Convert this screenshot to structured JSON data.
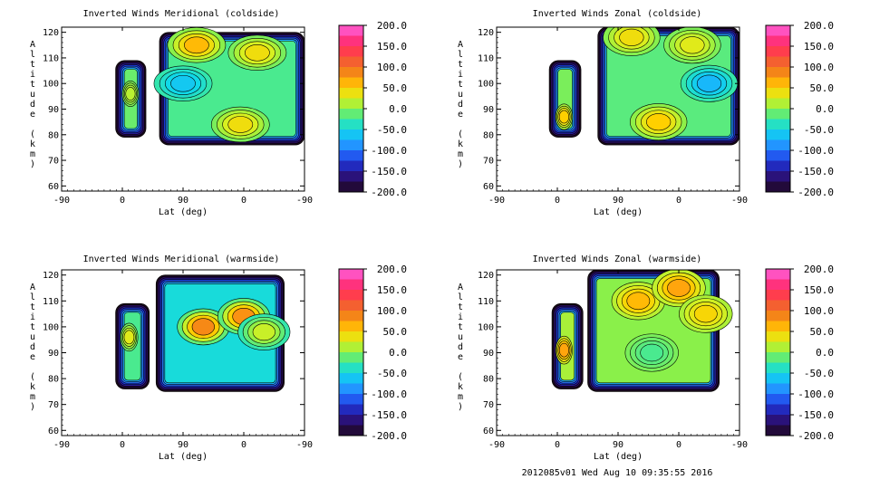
{
  "footer": "2012085v01 Wed Aug 10 09:35:55 2016",
  "chart_data": [
    {
      "type": "heatmap",
      "title": "Inverted Winds Meridional (coldside)",
      "xlabel": "Lat (deg)",
      "ylabel": "Altitude (km)",
      "x_tick_labels": [
        "-90",
        "0",
        "90",
        "0",
        "-90"
      ],
      "y_ticks": [
        60,
        70,
        80,
        90,
        100,
        110,
        120
      ],
      "ylim": [
        58,
        122
      ],
      "colorbar_ticks": [
        "200.0",
        "150.0",
        "100.0",
        "50.0",
        "0.0",
        "-50.0",
        "-100.0",
        "-150.0",
        "-200.0"
      ],
      "colorbar_range": [
        -200,
        200
      ],
      "blobs": [
        {
          "region": "left-band",
          "lat": [
            -10,
            35
          ],
          "alt": [
            79,
            109
          ],
          "value": -10,
          "core": [
            {
              "lat": 12,
              "alt": 96,
              "value": 15
            }
          ]
        },
        {
          "region": "right-band",
          "lat": [
            125,
            -90
          ],
          "alt": [
            76,
            120
          ],
          "value": -20,
          "core": [
            {
              "lat": 70,
              "alt": 115,
              "value": 60
            },
            {
              "lat": -20,
              "alt": 112,
              "value": 40
            },
            {
              "lat": 5,
              "alt": 84,
              "value": 40
            },
            {
              "lat": 90,
              "alt": 100,
              "value": -60
            }
          ]
        }
      ]
    },
    {
      "type": "heatmap",
      "title": "Inverted Winds Zonal (coldside)",
      "xlabel": "Lat (deg)",
      "ylabel": "Altitude (km)",
      "x_tick_labels": [
        "-90",
        "0",
        "90",
        "0",
        "-90"
      ],
      "y_ticks": [
        60,
        70,
        80,
        90,
        100,
        110,
        120
      ],
      "ylim": [
        58,
        122
      ],
      "colorbar_ticks": [
        "200.0",
        "150.0",
        "100.0",
        "50.0",
        "0.0",
        "-50.0",
        "-100.0",
        "-150.0",
        "-200.0"
      ],
      "colorbar_range": [
        -200,
        200
      ],
      "blobs": [
        {
          "region": "left-band",
          "lat": [
            -12,
            35
          ],
          "alt": [
            79,
            109
          ],
          "value": -5,
          "core": [
            {
              "lat": 10,
              "alt": 87,
              "value": 50
            }
          ]
        },
        {
          "region": "right-band",
          "lat": [
            120,
            -90
          ],
          "alt": [
            76,
            122
          ],
          "value": -15,
          "core": [
            {
              "lat": 70,
              "alt": 118,
              "value": 40
            },
            {
              "lat": 30,
              "alt": 85,
              "value": 50
            },
            {
              "lat": -20,
              "alt": 115,
              "value": 30
            },
            {
              "lat": -45,
              "alt": 100,
              "value": -70
            }
          ]
        }
      ]
    },
    {
      "type": "heatmap",
      "title": "Inverted Winds Meridional (warmside)",
      "xlabel": "Lat (deg)",
      "ylabel": "Altitude (km)",
      "x_tick_labels": [
        "-90",
        "0",
        "90",
        "0",
        "-90"
      ],
      "y_ticks": [
        60,
        70,
        80,
        90,
        100,
        110,
        120
      ],
      "ylim": [
        58,
        122
      ],
      "colorbar_ticks": [
        "200.0",
        "150.0",
        "100.0",
        "50.0",
        "0.0",
        "-50.0",
        "-100.0",
        "-150.0",
        "-200.0"
      ],
      "colorbar_range": [
        -200,
        200
      ],
      "blobs": [
        {
          "region": "left-band",
          "lat": [
            -10,
            40
          ],
          "alt": [
            76,
            109
          ],
          "value": -20,
          "core": [
            {
              "lat": 10,
              "alt": 96,
              "value": 30
            }
          ]
        },
        {
          "region": "right-band",
          "lat": [
            130,
            -60
          ],
          "alt": [
            75,
            120
          ],
          "value": -45,
          "core": [
            {
              "lat": 60,
              "alt": 100,
              "value": 85
            },
            {
              "lat": 0,
              "alt": 104,
              "value": 80
            },
            {
              "lat": -30,
              "alt": 98,
              "value": 20
            }
          ]
        }
      ]
    },
    {
      "type": "heatmap",
      "title": "Inverted Winds Zonal (warmside)",
      "xlabel": "Lat (deg)",
      "ylabel": "Altitude (km)",
      "x_tick_labels": [
        "-90",
        "0",
        "90",
        "0",
        "-90"
      ],
      "y_ticks": [
        60,
        70,
        80,
        90,
        100,
        110,
        120
      ],
      "ylim": [
        58,
        122
      ],
      "colorbar_ticks": [
        "200.0",
        "150.0",
        "100.0",
        "50.0",
        "0.0",
        "-50.0",
        "-100.0",
        "-150.0",
        "-200.0"
      ],
      "colorbar_range": [
        -200,
        200
      ],
      "blobs": [
        {
          "region": "left-band",
          "lat": [
            -8,
            38
          ],
          "alt": [
            76,
            109
          ],
          "value": 10,
          "core": [
            {
              "lat": 10,
              "alt": 91,
              "value": 70
            }
          ]
        },
        {
          "region": "right-band",
          "lat": [
            135,
            -60
          ],
          "alt": [
            75,
            122
          ],
          "value": 0,
          "core": [
            {
              "lat": 60,
              "alt": 110,
              "value": 60
            },
            {
              "lat": 0,
              "alt": 115,
              "value": 70
            },
            {
              "lat": -40,
              "alt": 105,
              "value": 45
            },
            {
              "lat": 40,
              "alt": 90,
              "value": -20
            }
          ]
        }
      ]
    }
  ]
}
